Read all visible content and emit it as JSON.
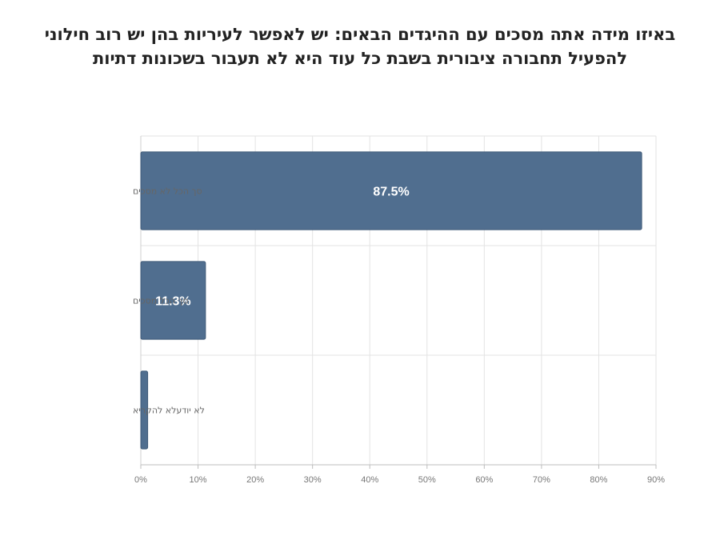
{
  "chart_data": {
    "type": "bar",
    "orientation": "horizontal",
    "title_lines": [
      "באיזו מידה אתה מסכים עם ההיגדים הבאים: יש לאפשר לעיריות בהן יש רוב חילוני",
      "להפעיל תחבורה ציבורית בשבת כל עוד היא לא תעבור בשכונות דתיות"
    ],
    "categories": [
      "סך הכל לא מסכים",
      "סך הכל מסכים",
      "לא יודעלא להקריא"
    ],
    "values": [
      87.5,
      11.3,
      1.2
    ],
    "data_labels": [
      "87.5%",
      "11.3%",
      ""
    ],
    "xlim": [
      0,
      90
    ],
    "x_ticks": [
      0,
      10,
      20,
      30,
      40,
      50,
      60,
      70,
      80,
      90
    ],
    "x_tick_labels": [
      "0%",
      "10%",
      "20%",
      "30%",
      "40%",
      "50%",
      "60%",
      "70%",
      "80%",
      "90%"
    ],
    "bar_color": "#506e8f",
    "grid": true
  }
}
